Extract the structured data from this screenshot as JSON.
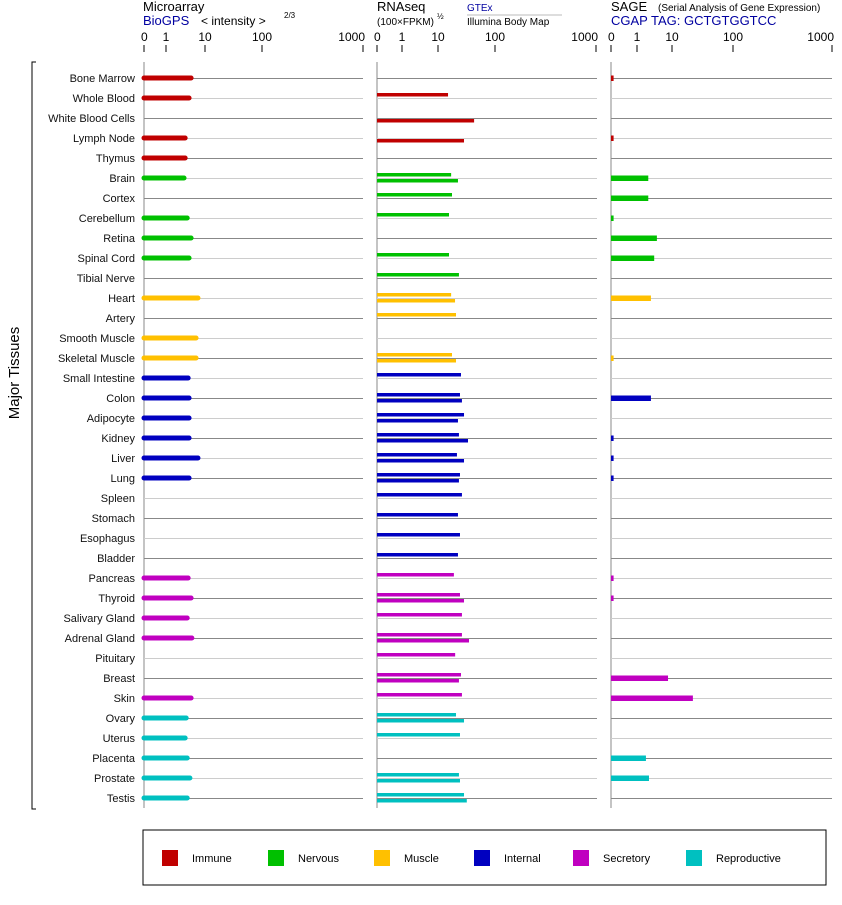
{
  "chart_data": {
    "type": "bar",
    "orientation": "horizontal",
    "ylabel": "Major Tissues",
    "scale": "compressed-log",
    "panels": {
      "microarray": {
        "title": "Microarray",
        "source": "BioGPS",
        "unit": "< intensity >",
        "unit_exp": "2/3",
        "ticks": [
          "0",
          "1",
          "10",
          "100",
          "1000"
        ],
        "xlim": [
          0,
          1000
        ]
      },
      "rnaseq": {
        "title": "RNAseq",
        "unit": "(100×FPKM)",
        "unit_exp": "½",
        "source_top": "GTEx",
        "source_bottom": "Illumina Body Map",
        "ticks": [
          "0",
          "1",
          "10",
          "100",
          "1000"
        ],
        "xlim": [
          0,
          1000
        ]
      },
      "sage": {
        "title": "SAGE",
        "subtitle": "(Serial Analysis of Gene Expression)",
        "tag": "CGAP TAG: GCTGTGGTCC",
        "ticks": [
          "0",
          "1",
          "10",
          "100",
          "1000"
        ],
        "xlim": [
          0,
          1000
        ]
      }
    },
    "groups": [
      {
        "name": "Immune",
        "color": "#c00000"
      },
      {
        "name": "Nervous",
        "color": "#00c000"
      },
      {
        "name": "Muscle",
        "color": "#ffc000"
      },
      {
        "name": "Internal",
        "color": "#0000c0"
      },
      {
        "name": "Secretory",
        "color": "#c000c0"
      },
      {
        "name": "Reproductive",
        "color": "#00c0c0"
      }
    ],
    "tissues": [
      {
        "name": "Bone Marrow",
        "group": 0,
        "microarray": 4.4,
        "gtex": null,
        "illumina": null,
        "sage": 0.1
      },
      {
        "name": "Whole Blood",
        "group": 0,
        "microarray": 3.9,
        "gtex": 15,
        "illumina": null,
        "sage": null
      },
      {
        "name": "White Blood Cells",
        "group": 0,
        "microarray": null,
        "gtex": null,
        "illumina": 43,
        "sage": null
      },
      {
        "name": "Lymph Node",
        "group": 0,
        "microarray": 3.1,
        "gtex": null,
        "illumina": 28.6,
        "sage": 0.1
      },
      {
        "name": "Thymus",
        "group": 0,
        "microarray": 3.1,
        "gtex": null,
        "illumina": null,
        "sage": null
      },
      {
        "name": "Brain",
        "group": 1,
        "microarray": 2.9,
        "gtex": 17,
        "illumina": 22.4,
        "sage": 2.1
      },
      {
        "name": "Cortex",
        "group": 1,
        "microarray": null,
        "gtex": 17.6,
        "illumina": null,
        "sage": 2.1
      },
      {
        "name": "Cerebellum",
        "group": 1,
        "microarray": 3.5,
        "gtex": 15.6,
        "illumina": null,
        "sage": 0.1
      },
      {
        "name": "Retina",
        "group": 1,
        "microarray": 4.4,
        "gtex": null,
        "illumina": null,
        "sage": 3.7
      },
      {
        "name": "Spinal Cord",
        "group": 1,
        "microarray": 3.9,
        "gtex": 15.6,
        "illumina": null,
        "sage": 3.1
      },
      {
        "name": "Tibial Nerve",
        "group": 1,
        "microarray": null,
        "gtex": 23.3,
        "illumina": null,
        "sage": null
      },
      {
        "name": "Heart",
        "group": 2,
        "microarray": 6.6,
        "gtex": 17,
        "illumina": 19.9,
        "sage": 2.5
      },
      {
        "name": "Artery",
        "group": 2,
        "microarray": null,
        "gtex": 20.7,
        "illumina": null,
        "sage": null
      },
      {
        "name": "Smooth Muscle",
        "group": 2,
        "microarray": 5.9,
        "gtex": null,
        "illumina": null,
        "sage": null
      },
      {
        "name": "Skeletal Muscle",
        "group": 2,
        "microarray": 5.9,
        "gtex": 17.6,
        "illumina": 20.7,
        "sage": 0.1
      },
      {
        "name": "Small Intestine",
        "group": 3,
        "microarray": 3.7,
        "gtex": 25.3,
        "illumina": null,
        "sage": null
      },
      {
        "name": "Colon",
        "group": 3,
        "microarray": 3.9,
        "gtex": 24.3,
        "illumina": 26.3,
        "sage": 2.5
      },
      {
        "name": "Adipocyte",
        "group": 3,
        "microarray": 3.9,
        "gtex": 28.6,
        "illumina": 22.4,
        "sage": null
      },
      {
        "name": "Kidney",
        "group": 3,
        "microarray": 3.9,
        "gtex": 23.3,
        "illumina": 33.6,
        "sage": 0.1
      },
      {
        "name": "Liver",
        "group": 3,
        "microarray": 6.6,
        "gtex": 21.5,
        "illumina": 28.6,
        "sage": 0.1
      },
      {
        "name": "Lung",
        "group": 3,
        "microarray": 3.9,
        "gtex": 24.3,
        "illumina": 23.3,
        "sage": 0.1
      },
      {
        "name": "Spleen",
        "group": 3,
        "microarray": null,
        "gtex": 26.3,
        "illumina": null,
        "sage": null
      },
      {
        "name": "Stomach",
        "group": 3,
        "microarray": null,
        "gtex": 22.4,
        "illumina": null,
        "sage": null
      },
      {
        "name": "Esophagus",
        "group": 3,
        "microarray": null,
        "gtex": 24.3,
        "illumina": null,
        "sage": null
      },
      {
        "name": "Bladder",
        "group": 3,
        "microarray": null,
        "gtex": 22.4,
        "illumina": null,
        "sage": null
      },
      {
        "name": "Pancreas",
        "group": 4,
        "microarray": 3.7,
        "gtex": 19,
        "illumina": null,
        "sage": 0.1
      },
      {
        "name": "Thyroid",
        "group": 4,
        "microarray": 4.4,
        "gtex": 24.3,
        "illumina": 28.6,
        "sage": 0.1
      },
      {
        "name": "Salivary Gland",
        "group": 4,
        "microarray": 3.5,
        "gtex": 26.3,
        "illumina": null,
        "sage": null
      },
      {
        "name": "Adrenal Gland",
        "group": 4,
        "microarray": 4.6,
        "gtex": 26.3,
        "illumina": 35,
        "sage": null
      },
      {
        "name": "Pituitary",
        "group": 4,
        "microarray": null,
        "gtex": 20,
        "illumina": null,
        "sage": null
      },
      {
        "name": "Breast",
        "group": 4,
        "microarray": null,
        "gtex": 25.3,
        "illumina": 23.3,
        "sage": 7.7
      },
      {
        "name": "Skin",
        "group": 4,
        "microarray": 4.4,
        "gtex": 26.3,
        "illumina": null,
        "sage": 22
      },
      {
        "name": "Ovary",
        "group": 5,
        "microarray": 3.3,
        "gtex": 20.7,
        "illumina": 28.6,
        "sage": null
      },
      {
        "name": "Uterus",
        "group": 5,
        "microarray": 3.1,
        "gtex": 24.3,
        "illumina": null,
        "sage": null
      },
      {
        "name": "Placenta",
        "group": 5,
        "microarray": 3.5,
        "gtex": null,
        "illumina": null,
        "sage": 1.8
      },
      {
        "name": "Prostate",
        "group": 5,
        "microarray": 4.1,
        "gtex": 23.3,
        "illumina": 24.3,
        "sage": 2.2
      },
      {
        "name": "Testis",
        "group": 5,
        "microarray": 3.5,
        "gtex": 28.6,
        "illumina": 32,
        "sage": null
      }
    ]
  }
}
